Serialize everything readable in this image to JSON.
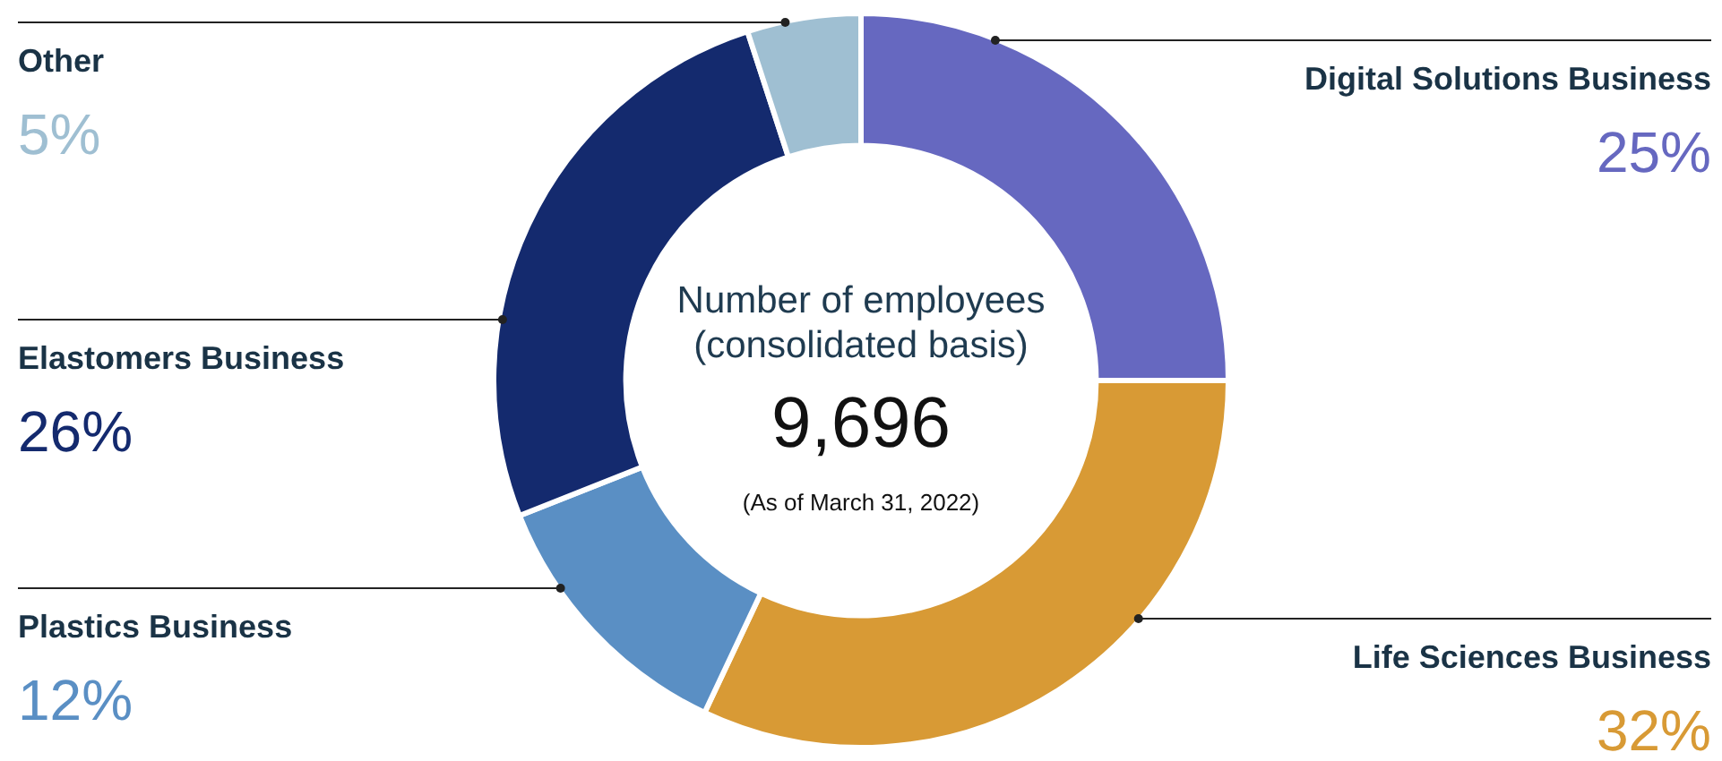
{
  "chart_data": {
    "type": "donut",
    "title": "Number of employees (consolidated basis)",
    "annotations": [
      "9,696",
      "(As of March 31, 2022)"
    ],
    "categories": [
      "Digital Solutions Business",
      "Life Sciences Business",
      "Plastics Business",
      "Elastomers Business",
      "Other"
    ],
    "values": [
      25,
      32,
      12,
      26,
      5
    ],
    "colors": [
      "#6668c0",
      "#d89a35",
      "#5a8fc4",
      "#142a6e",
      "#9fbfd2"
    ],
    "value_labels": [
      "25%",
      "32%",
      "12%",
      "26%",
      "5%"
    ],
    "legend": false
  }
}
